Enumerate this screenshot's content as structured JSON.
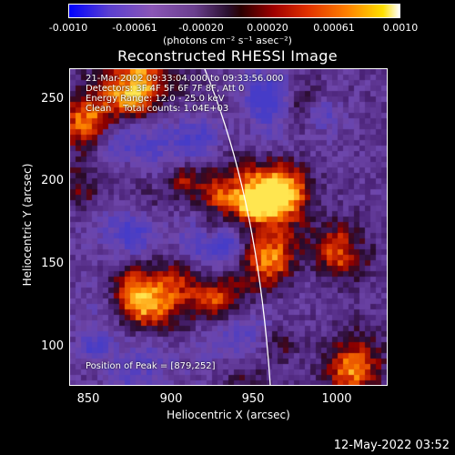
{
  "colorbar": {
    "ticks": [
      "-0.0010",
      "-0.00061",
      "-0.00020",
      "0.00020",
      "0.00061",
      "0.0010"
    ],
    "units": "(photons cm⁻² s⁻¹ asec⁻²)"
  },
  "title": "Reconstructed RHESSI Image",
  "legend": {
    "line1": "21-Mar-2002 09:33:04.000 to 09:33:56.000",
    "line2": "Detectors: 3F 4F 5F 6F 7F 8F, Att 0",
    "line3": "Energy Range: 12.0 - 25.0 keV",
    "line4": "Clean    Total counts: 1.04E+03",
    "peak": "Position of Peak = [879,252]"
  },
  "axes": {
    "xlabel": "Heliocentric X (arcsec)",
    "ylabel": "Heliocentric Y (arcsec)",
    "xticks": [
      "850",
      "900",
      "950",
      "1000"
    ],
    "yticks": [
      "250",
      "200",
      "150",
      "100"
    ]
  },
  "datestamp": "12-May-2022 03:52"
}
